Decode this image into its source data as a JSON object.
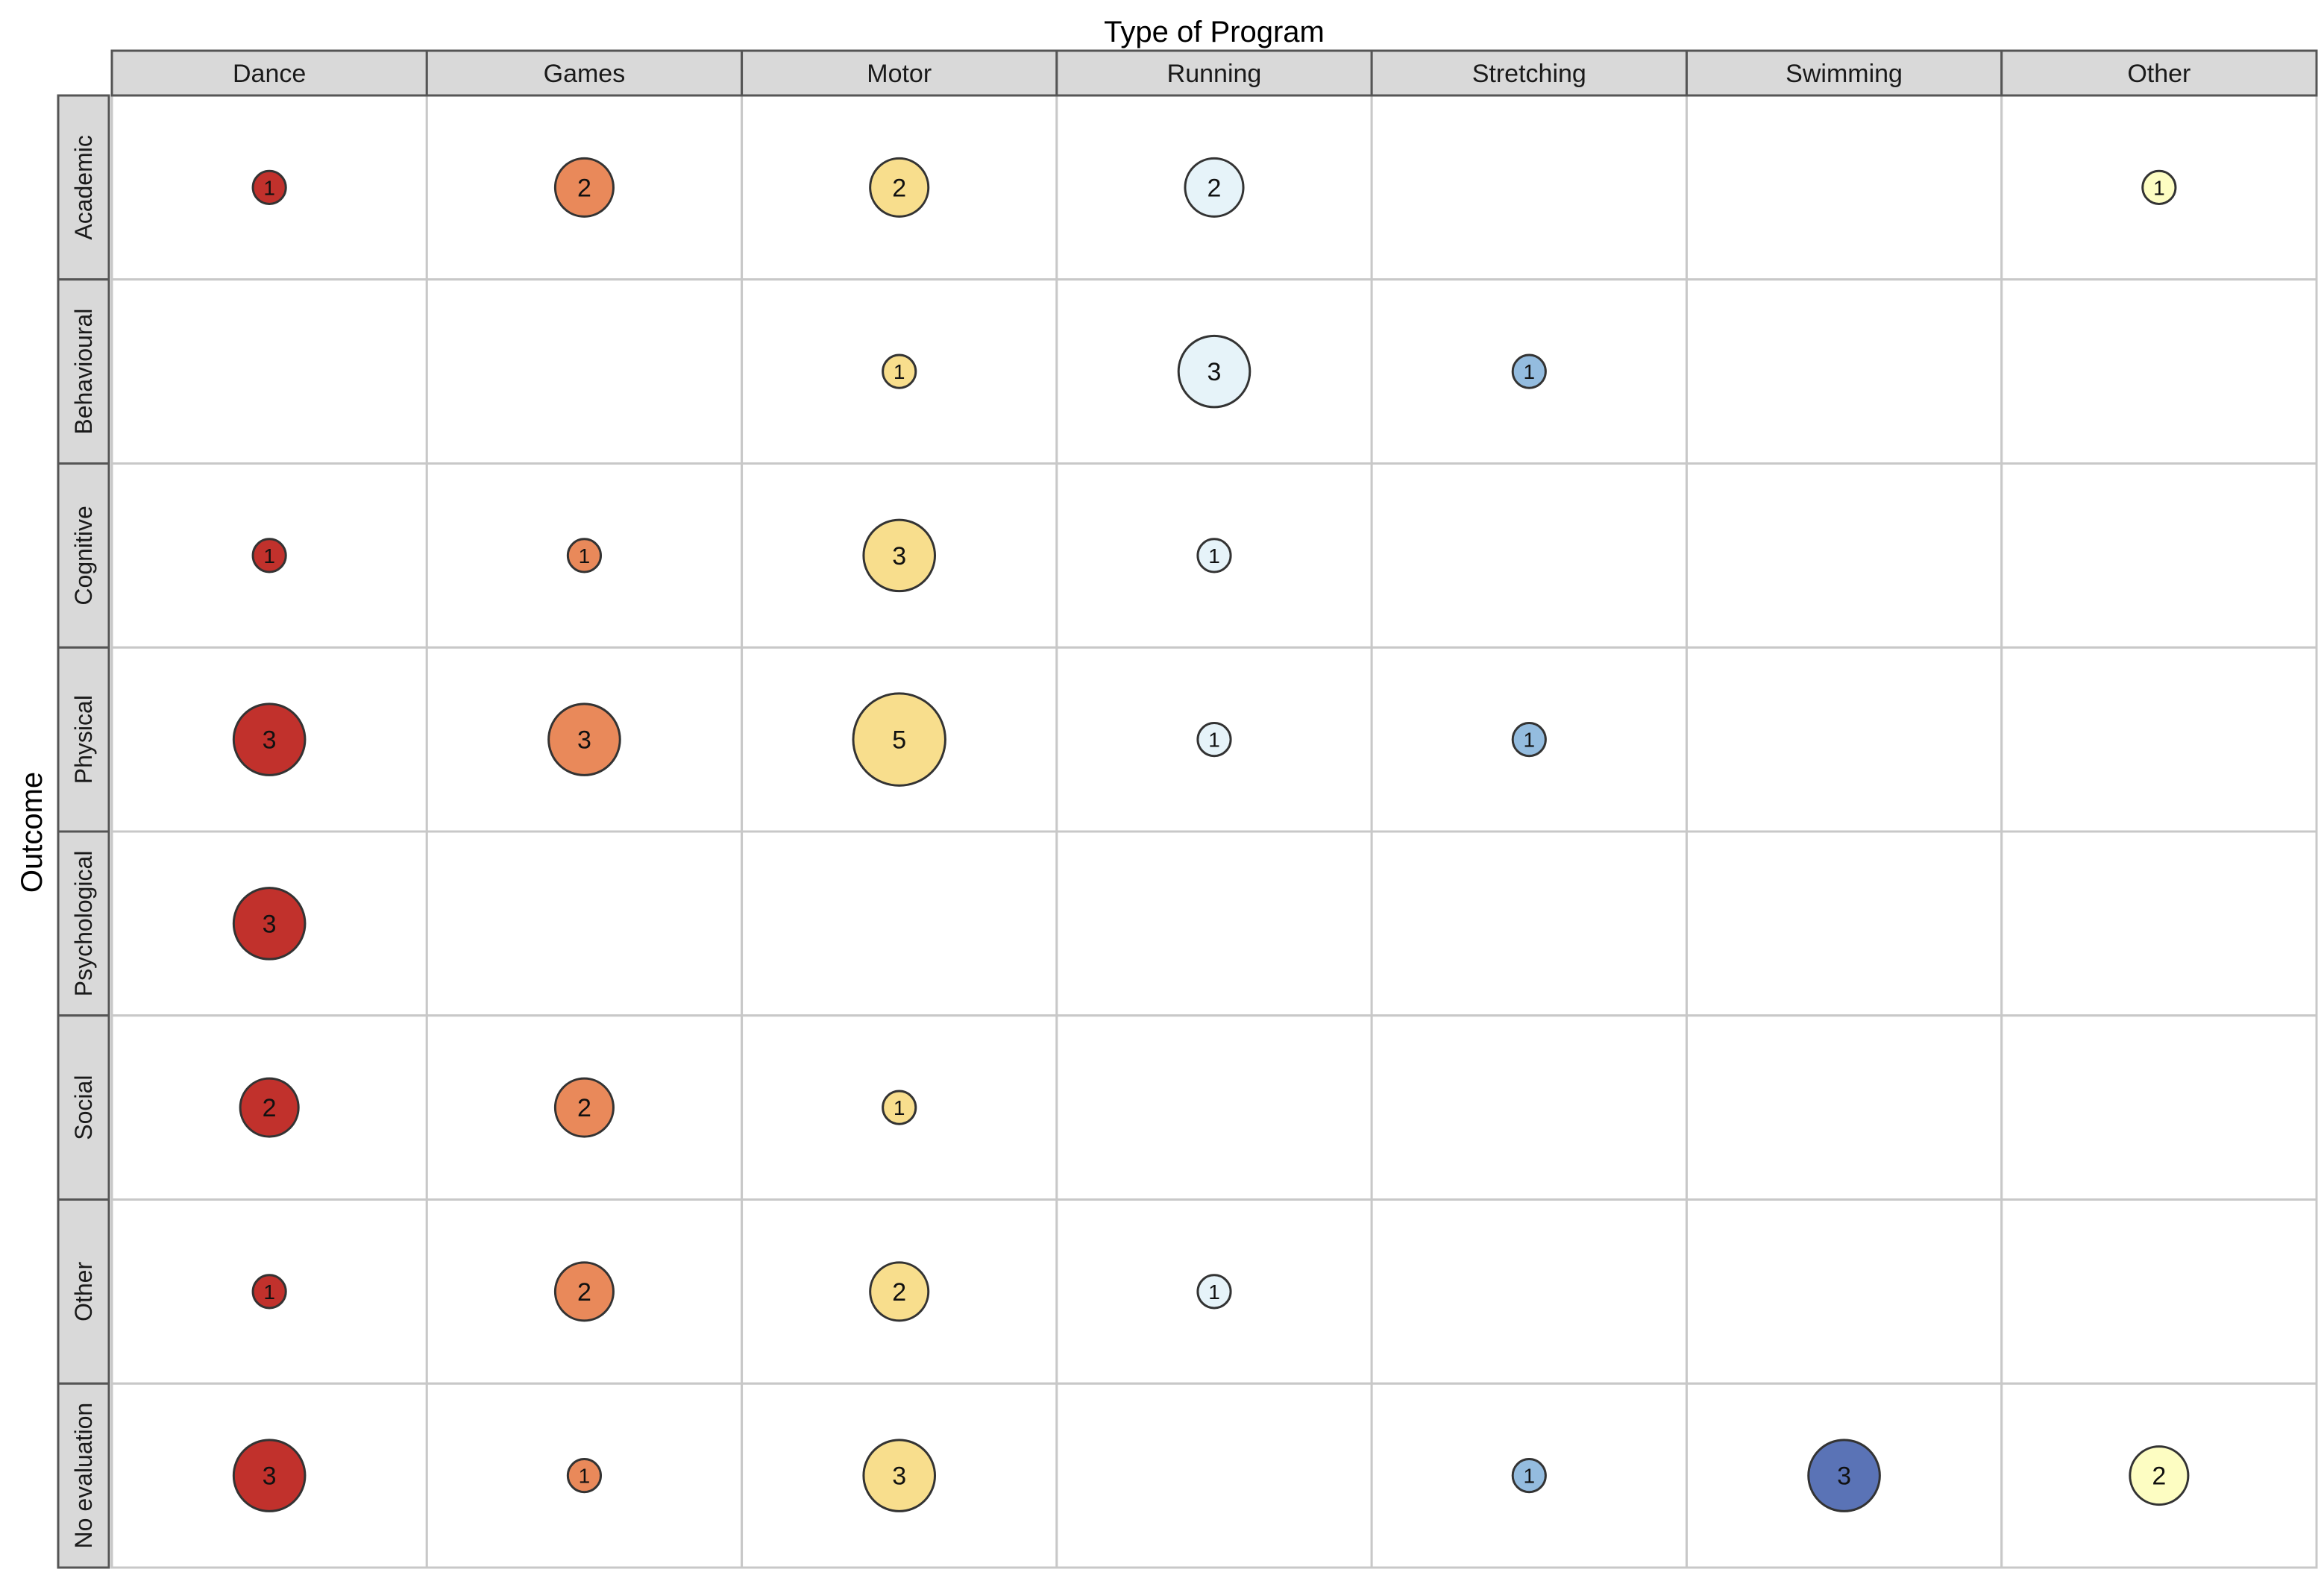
{
  "chart_data": {
    "type": "bubble-grid",
    "xlabel": "Type of Program",
    "ylabel": "Outcome",
    "columns": [
      "Dance",
      "Games",
      "Motor",
      "Running",
      "Stretching",
      "Swimming",
      "Other"
    ],
    "rows": [
      "Academic",
      "Behavioural",
      "Cognitive",
      "Physical",
      "Psychological",
      "Social",
      "Other",
      "No evaluation"
    ],
    "column_colors": {
      "Dance": "#c1312c",
      "Games": "#e9895a",
      "Motor": "#f8de8d",
      "Running": "#e6f3f9",
      "Stretching": "#94bcdf",
      "Swimming": "#5a73b6",
      "Other": "#fdfdc2"
    },
    "points": [
      {
        "row": "Academic",
        "col": "Dance",
        "value": 1
      },
      {
        "row": "Academic",
        "col": "Games",
        "value": 2
      },
      {
        "row": "Academic",
        "col": "Motor",
        "value": 2
      },
      {
        "row": "Academic",
        "col": "Running",
        "value": 2
      },
      {
        "row": "Academic",
        "col": "Other",
        "value": 1
      },
      {
        "row": "Behavioural",
        "col": "Motor",
        "value": 1
      },
      {
        "row": "Behavioural",
        "col": "Running",
        "value": 3
      },
      {
        "row": "Behavioural",
        "col": "Stretching",
        "value": 1
      },
      {
        "row": "Cognitive",
        "col": "Dance",
        "value": 1
      },
      {
        "row": "Cognitive",
        "col": "Games",
        "value": 1
      },
      {
        "row": "Cognitive",
        "col": "Motor",
        "value": 3
      },
      {
        "row": "Cognitive",
        "col": "Running",
        "value": 1
      },
      {
        "row": "Physical",
        "col": "Dance",
        "value": 3
      },
      {
        "row": "Physical",
        "col": "Games",
        "value": 3
      },
      {
        "row": "Physical",
        "col": "Motor",
        "value": 5
      },
      {
        "row": "Physical",
        "col": "Running",
        "value": 1
      },
      {
        "row": "Physical",
        "col": "Stretching",
        "value": 1
      },
      {
        "row": "Psychological",
        "col": "Dance",
        "value": 3
      },
      {
        "row": "Social",
        "col": "Dance",
        "value": 2
      },
      {
        "row": "Social",
        "col": "Games",
        "value": 2
      },
      {
        "row": "Social",
        "col": "Motor",
        "value": 1
      },
      {
        "row": "Other",
        "col": "Dance",
        "value": 1
      },
      {
        "row": "Other",
        "col": "Games",
        "value": 2
      },
      {
        "row": "Other",
        "col": "Motor",
        "value": 2
      },
      {
        "row": "Other",
        "col": "Running",
        "value": 1
      },
      {
        "row": "No evaluation",
        "col": "Dance",
        "value": 3
      },
      {
        "row": "No evaluation",
        "col": "Games",
        "value": 1
      },
      {
        "row": "No evaluation",
        "col": "Motor",
        "value": 3
      },
      {
        "row": "No evaluation",
        "col": "Stretching",
        "value": 1
      },
      {
        "row": "No evaluation",
        "col": "Swimming",
        "value": 3
      },
      {
        "row": "No evaluation",
        "col": "Other",
        "value": 2
      }
    ]
  }
}
